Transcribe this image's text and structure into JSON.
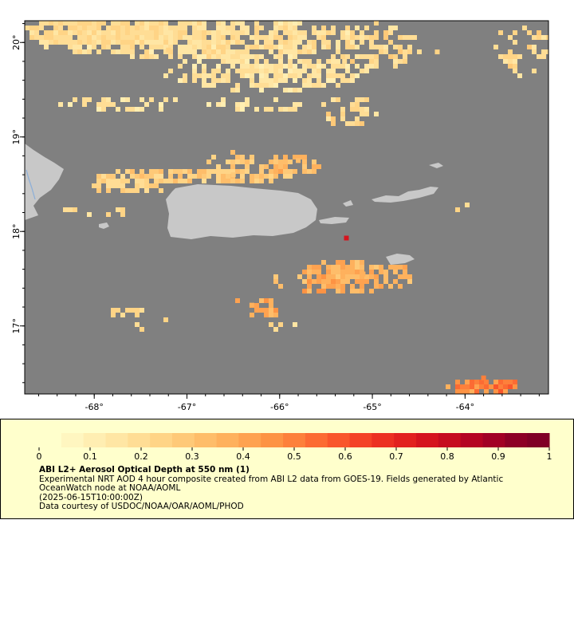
{
  "map": {
    "lat_ticks": [
      "20°",
      "19°",
      "18°",
      "17°"
    ],
    "lon_ticks": [
      "-68°",
      "-67°",
      "-66°",
      "-65°",
      "-64°"
    ],
    "colors": {
      "ocean": "#808080",
      "land": "#c8c8c8",
      "river": "#8fb0d8"
    }
  },
  "legend": {
    "ticks": [
      "0",
      "0.1",
      "0.2",
      "0.3",
      "0.4",
      "0.5",
      "0.6",
      "0.7",
      "0.8",
      "0.9",
      "1"
    ],
    "title": "ABI L2+ Aerosol Optical Depth at 550 nm (1)",
    "desc_1": "Experimental NRT AOD 4 hour composite created from ABI L2 data from GOES-19. Fields generated by Atlantic",
    "desc_2": "OceanWatch node at NOAA/AOML",
    "desc_3": "(2025-06-15T10:00:00Z)",
    "credit": "Data courtesy of USDOC/NOAA/OAR/AOML/PHOD",
    "colors": [
      "#ffffcc",
      "#fff6c0",
      "#ffeeb2",
      "#ffe6a4",
      "#ffdd95",
      "#ffd486",
      "#fec978",
      "#febd6a",
      "#feb15d",
      "#fea250",
      "#fd9344",
      "#fd803b",
      "#fc6b33",
      "#f9562c",
      "#f44227",
      "#ec3022",
      "#e2211f",
      "#d5141e",
      "#c60c20",
      "#b50422",
      "#a20125",
      "#8d0026",
      "#800026"
    ]
  },
  "chart_data": {
    "type": "heatmap",
    "title": "ABI L2+ Aerosol Optical Depth at 550 nm (1)",
    "x_axis": {
      "ticks": [
        -68,
        -67,
        -66,
        -65,
        -64
      ],
      "range": [
        -68.75,
        -63.1
      ]
    },
    "y_axis": {
      "ticks": [
        17,
        18,
        19,
        20
      ],
      "range": [
        16.28,
        20.23
      ]
    },
    "colorbar": {
      "range": [
        0,
        1
      ],
      "ticks": [
        0,
        0.1,
        0.2,
        0.3,
        0.4,
        0.5,
        0.6,
        0.7,
        0.8,
        0.9,
        1
      ]
    },
    "aerosol_clusters": [
      {
        "lon": -67.2,
        "lat": 19.92,
        "aod": 0.22
      },
      {
        "lon": -66.0,
        "lat": 19.85,
        "aod": 0.18
      },
      {
        "lon": -65.3,
        "lat": 19.8,
        "aod": 0.2
      },
      {
        "lon": -64.3,
        "lat": 19.9,
        "aod": 0.22
      },
      {
        "lon": -67.8,
        "lat": 18.58,
        "aod": 0.25
      },
      {
        "lon": -66.5,
        "lat": 18.6,
        "aod": 0.28
      },
      {
        "lon": -65.8,
        "lat": 18.75,
        "aod": 0.33
      },
      {
        "lon": -65.1,
        "lat": 17.55,
        "aod": 0.35
      },
      {
        "lon": -66.3,
        "lat": 17.22,
        "aod": 0.38
      },
      {
        "lon": -63.8,
        "lat": 16.45,
        "aod": 0.5
      },
      {
        "lon": -65.28,
        "lat": 17.93,
        "aod": 0.75
      }
    ]
  }
}
